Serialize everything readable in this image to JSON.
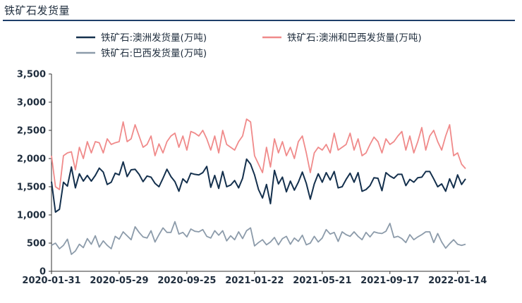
{
  "chart_data": {
    "type": "line",
    "title": "铁矿石发货量",
    "xlabel": "",
    "ylabel": "",
    "ylim": [
      0,
      3500
    ],
    "yticks": [
      "0",
      "500",
      "1,000",
      "1,500",
      "2,000",
      "2,500",
      "3,000",
      "3,500"
    ],
    "ytick_values": [
      0,
      500,
      1000,
      1500,
      2000,
      2500,
      3000,
      3500
    ],
    "xticks": [
      "2020-01-31",
      "2020-05-29",
      "2020-09-25",
      "2021-01-22",
      "2021-05-21",
      "2021-09-17",
      "2022-01-14"
    ],
    "xtick_index": [
      0,
      17,
      34,
      51,
      68,
      85,
      102
    ],
    "grid": false,
    "legend_position": "top",
    "n_weeks": 105,
    "series": [
      {
        "name": "铁矿石:澳洲发货量(万吨)",
        "color": "#14304d",
        "values": [
          1590,
          1050,
          1100,
          1580,
          1510,
          1850,
          1480,
          1730,
          1600,
          1700,
          1600,
          1700,
          1830,
          1760,
          1540,
          1580,
          1740,
          1710,
          1940,
          1680,
          1800,
          1810,
          1720,
          1590,
          1690,
          1670,
          1560,
          1500,
          1650,
          1810,
          1680,
          1590,
          1420,
          1640,
          1570,
          1740,
          1720,
          1710,
          1750,
          1860,
          1490,
          1700,
          1470,
          1770,
          1500,
          1530,
          1610,
          1480,
          1650,
          1990,
          1900,
          1710,
          1450,
          1300,
          1540,
          1200,
          1790,
          1550,
          1670,
          1410,
          1600,
          1440,
          1580,
          1760,
          1560,
          1280,
          1550,
          1730,
          1580,
          1750,
          1620,
          1770,
          1480,
          1500,
          1630,
          1740,
          1580,
          1750,
          1420,
          1450,
          1520,
          1660,
          1650,
          1430,
          1750,
          1690,
          1650,
          1720,
          1720,
          1520,
          1630,
          1580,
          1660,
          1670,
          1770,
          1770,
          1640,
          1500,
          1550,
          1420,
          1640,
          1480,
          1710,
          1540,
          1640
        ]
      },
      {
        "name": "铁矿石:澳洲和巴西发货量(万吨)",
        "color": "#f08a8a",
        "values": [
          2050,
          1500,
          1450,
          2050,
          2100,
          2120,
          1800,
          2200,
          2000,
          2300,
          2100,
          2300,
          2280,
          2100,
          2350,
          2250,
          2280,
          2300,
          2650,
          2300,
          2350,
          2600,
          2400,
          2200,
          2250,
          2400,
          2050,
          2260,
          2100,
          2300,
          2400,
          2450,
          2200,
          2400,
          2150,
          2480,
          2450,
          2400,
          2500,
          2350,
          2150,
          2400,
          2100,
          2500,
          2250,
          2200,
          2150,
          2300,
          2400,
          2700,
          2650,
          2050,
          1900,
          1750,
          2200,
          1850,
          2350,
          2100,
          2300,
          2050,
          2200,
          2000,
          2300,
          2400,
          2100,
          1750,
          2100,
          2200,
          2150,
          2250,
          2100,
          2450,
          2150,
          2200,
          2250,
          2450,
          2150,
          2350,
          2050,
          2100,
          2250,
          2380,
          2300,
          2100,
          2350,
          2250,
          2300,
          2400,
          2480,
          2150,
          2400,
          2100,
          2300,
          2550,
          2150,
          2400,
          2500,
          2300,
          2150,
          2400,
          2600,
          2050,
          2100,
          1900,
          1820
        ]
      },
      {
        "name": "铁矿石:巴西发货量(万吨)",
        "color": "#8c9baa",
        "values": [
          460,
          500,
          400,
          460,
          570,
          300,
          360,
          480,
          420,
          580,
          480,
          630,
          430,
          540,
          460,
          400,
          620,
          570,
          700,
          630,
          560,
          790,
          690,
          610,
          590,
          720,
          520,
          650,
          770,
          690,
          690,
          880,
          660,
          690,
          610,
          750,
          710,
          700,
          740,
          620,
          590,
          720,
          640,
          720,
          540,
          630,
          560,
          700,
          580,
          720,
          770,
          450,
          510,
          560,
          470,
          520,
          600,
          470,
          580,
          620,
          480,
          590,
          530,
          640,
          470,
          500,
          620,
          520,
          590,
          740,
          660,
          690,
          530,
          700,
          650,
          620,
          700,
          620,
          560,
          690,
          610,
          700,
          680,
          670,
          710,
          850,
          600,
          620,
          580,
          510,
          650,
          560,
          610,
          650,
          700,
          700,
          510,
          670,
          520,
          410,
          490,
          560,
          480,
          460,
          480
        ]
      }
    ]
  }
}
